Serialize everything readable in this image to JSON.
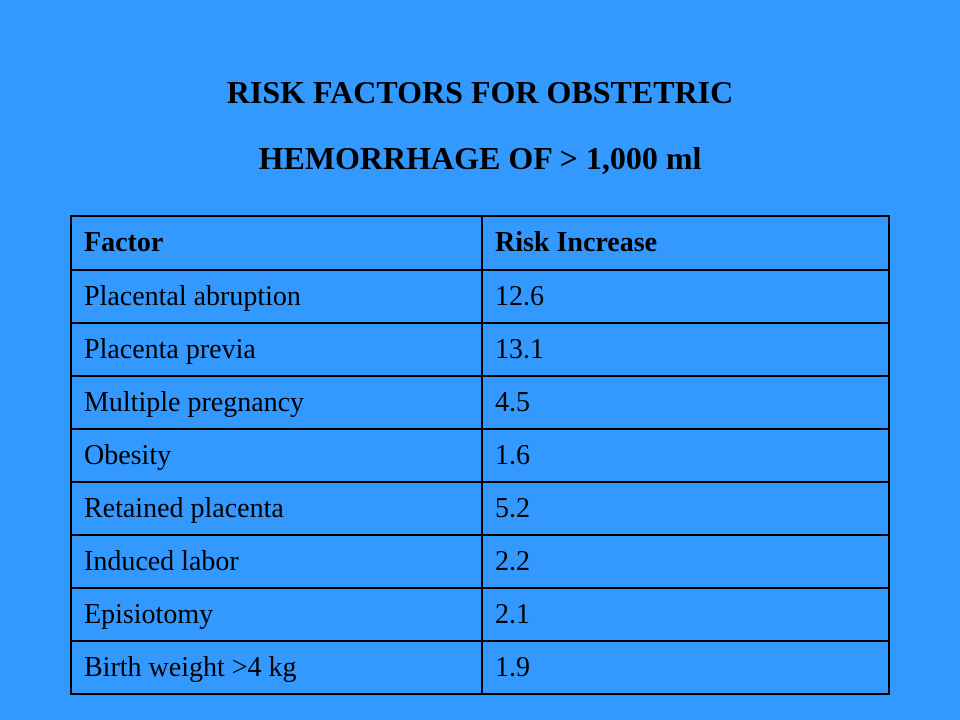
{
  "title": {
    "line1": "RISK FACTORS FOR OBSTETRIC",
    "line2": "HEMORRHAGE OF > 1,000 ml"
  },
  "table": {
    "headers": [
      "Factor",
      "Risk Increase"
    ],
    "rows": [
      {
        "factor": "Placental abruption",
        "risk": "12.6"
      },
      {
        "factor": "Placenta previa",
        "risk": "13.1"
      },
      {
        "factor": "Multiple pregnancy",
        "risk": "4.5"
      },
      {
        "factor": "Obesity",
        "risk": "1.6"
      },
      {
        "factor": "Retained placenta",
        "risk": "5.2"
      },
      {
        "factor": "Induced labor",
        "risk": "2.2"
      },
      {
        "factor": "Episiotomy",
        "risk": "2.1"
      },
      {
        "factor": "Birth weight >4 kg",
        "risk": "1.9"
      }
    ]
  },
  "colors": {
    "background": "#3399FF",
    "text": "#000000"
  }
}
